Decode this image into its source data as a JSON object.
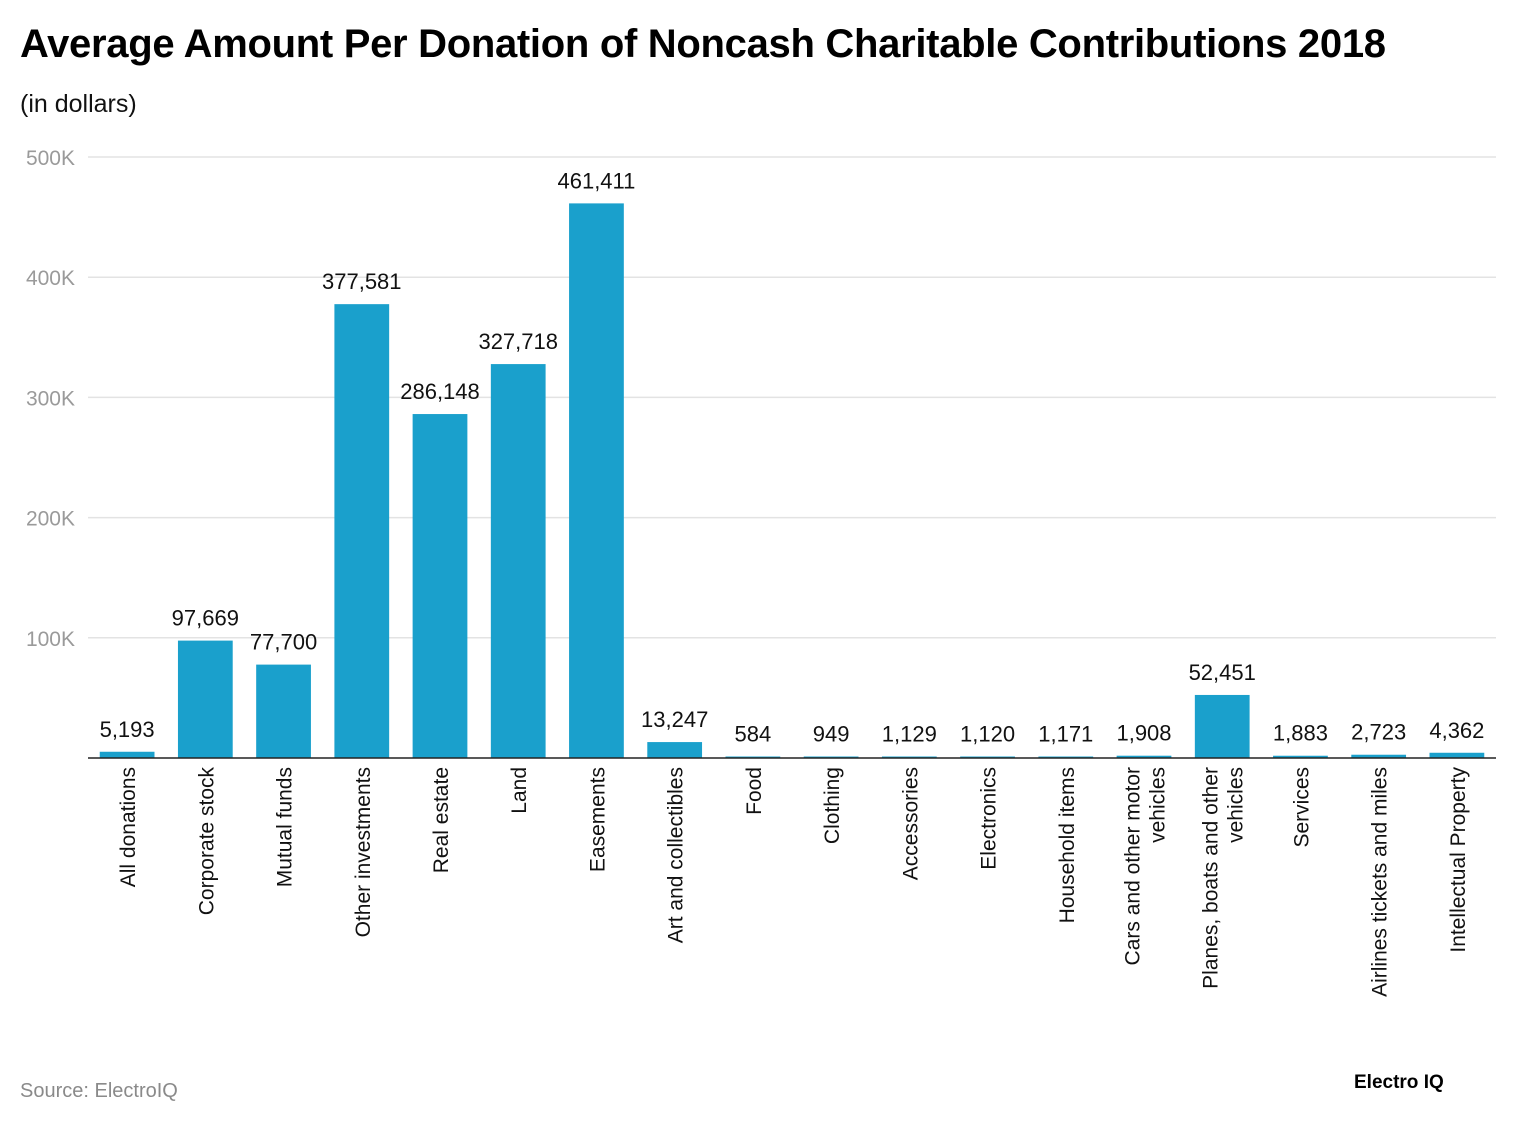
{
  "chart_data": {
    "type": "bar",
    "title": "Average Amount Per Donation of Noncash Charitable Contributions 2018",
    "subtitle": "(in dollars)",
    "xlabel": "",
    "ylabel": "",
    "ylim": [
      0,
      500000
    ],
    "yticks": [
      {
        "value": 100000,
        "label": "100K"
      },
      {
        "value": 200000,
        "label": "200K"
      },
      {
        "value": 300000,
        "label": "300K"
      },
      {
        "value": 400000,
        "label": "400K"
      },
      {
        "value": 500000,
        "label": "500K"
      }
    ],
    "grid": true,
    "bar_color": "#1aa0cc",
    "categories": [
      [
        "All donations"
      ],
      [
        "Corporate stock"
      ],
      [
        "Mutual funds"
      ],
      [
        "Other investments"
      ],
      [
        "Real estate"
      ],
      [
        "Land"
      ],
      [
        "Easements"
      ],
      [
        "Art and collectibles"
      ],
      [
        "Food"
      ],
      [
        "Clothing"
      ],
      [
        "Accessories"
      ],
      [
        "Electronics"
      ],
      [
        "Household items"
      ],
      [
        "Cars and other motor",
        "vehicles"
      ],
      [
        "Planes, boats and other",
        "vehicles"
      ],
      [
        "Services"
      ],
      [
        "Airlines tickets and miles"
      ],
      [
        "Intellectual Property"
      ]
    ],
    "values": [
      5193,
      97669,
      77700,
      377581,
      286148,
      327718,
      461411,
      13247,
      584,
      949,
      1129,
      1120,
      1171,
      1908,
      52451,
      1883,
      2723,
      4362
    ],
    "data_labels": [
      "5,193",
      "97,669",
      "77,700",
      "377,581",
      "286,148",
      "327,718",
      "461,411",
      "13,247",
      "584",
      "949",
      "1,129",
      "1,120",
      "1,171",
      "1,908",
      "52,451",
      "1,883",
      "2,723",
      "4,362"
    ]
  },
  "footer": {
    "source": "Source: ElectroIQ",
    "brand": "Electro IQ"
  }
}
